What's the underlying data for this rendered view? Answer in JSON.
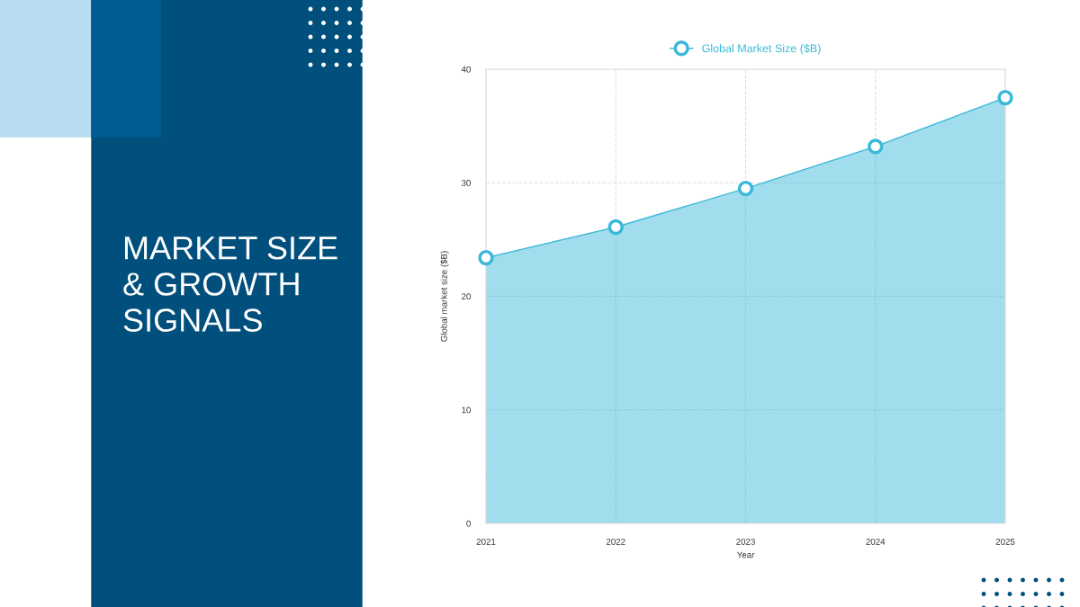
{
  "chart_data": {
    "type": "area",
    "title": "MARKET SIZE\n& GROWTH\nSIGNALS",
    "xlabel": "Year",
    "ylabel": "Global market size ($B)",
    "categories": [
      "2021",
      "2022",
      "2023",
      "2024",
      "2025"
    ],
    "series": [
      {
        "name": "Global Market Size ($B)",
        "color": "#3bb8d8",
        "values": [
          23.4,
          26.1,
          29.5,
          33.2,
          37.5
        ]
      }
    ],
    "ylim": [
      0,
      40
    ],
    "yticks": [
      0,
      10,
      20,
      30,
      40
    ],
    "grid": true,
    "legend": "top",
    "marker": "circle",
    "line_style": "solid"
  }
}
